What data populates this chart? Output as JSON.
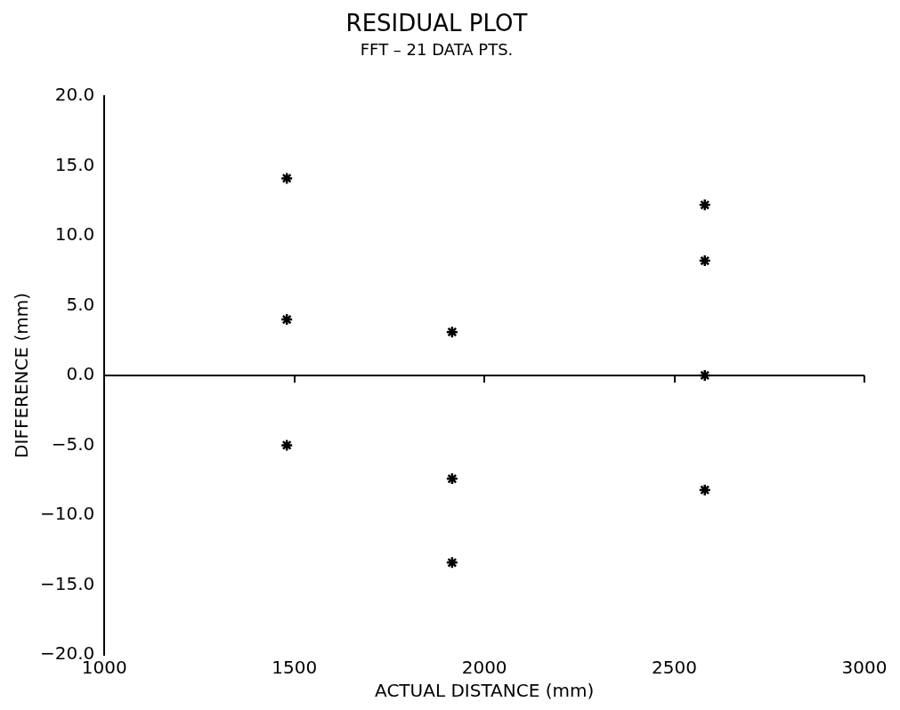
{
  "chart_data": {
    "type": "scatter",
    "title": "RESIDUAL PLOT",
    "subtitle": "FFT – 21 DATA PTS.",
    "xlabel": "ACTUAL DISTANCE (mm)",
    "ylabel": "DIFFERENCE (mm)",
    "x": [
      1480,
      1480,
      1480,
      1915,
      1915,
      1915,
      2580,
      2580,
      2580,
      2580
    ],
    "series": [
      {
        "color": "#000000",
        "values": [
          14.1,
          4.0,
          -5.0,
          3.1,
          -7.4,
          -13.4,
          12.2,
          8.2,
          0.0,
          -8.2
        ]
      }
    ],
    "xlim": [
      1000,
      3000
    ],
    "xticks": [
      1000,
      1500,
      2000,
      2500,
      3000
    ],
    "ylim": [
      -20,
      20
    ],
    "yticks": [
      {
        "value": -20,
        "label": "−20.0"
      },
      {
        "value": -15,
        "label": "−15.0"
      },
      {
        "value": -10,
        "label": "−10.0"
      },
      {
        "value": -5,
        "label": "−5.0"
      },
      {
        "value": 0,
        "label": "0.0"
      },
      {
        "value": 5,
        "label": "5.0"
      },
      {
        "value": 10,
        "label": "10.0"
      },
      {
        "value": 15,
        "label": "15.0"
      },
      {
        "value": 20,
        "label": "20.0"
      }
    ],
    "ref_lines": [
      {
        "axis": "y",
        "value": 0,
        "color": "#000000"
      }
    ],
    "marker": "cross",
    "grid": false,
    "legend": false
  }
}
